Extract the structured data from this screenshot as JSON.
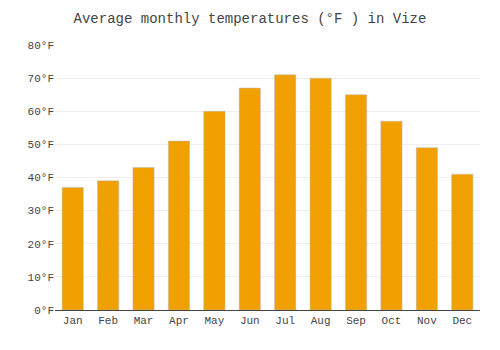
{
  "chart_data": {
    "type": "bar",
    "title": "Average monthly temperatures (°F ) in Vize",
    "categories": [
      "Jan",
      "Feb",
      "Mar",
      "Apr",
      "May",
      "Jun",
      "Jul",
      "Aug",
      "Sep",
      "Oct",
      "Nov",
      "Dec"
    ],
    "values": [
      37,
      39,
      43,
      51,
      60,
      67,
      71,
      70,
      65,
      57,
      49,
      41
    ],
    "color": "#F0A000",
    "ylim": [
      0,
      80
    ],
    "yticks": [
      {
        "value": 0,
        "label": "0°F"
      },
      {
        "value": 10,
        "label": "10°F"
      },
      {
        "value": 20,
        "label": "20°F"
      },
      {
        "value": 30,
        "label": "30°F"
      },
      {
        "value": 40,
        "label": "40°F"
      },
      {
        "value": 50,
        "label": "50°F"
      },
      {
        "value": 60,
        "label": "60°F"
      },
      {
        "value": 70,
        "label": "70°F"
      },
      {
        "value": 80,
        "label": "80°F"
      }
    ],
    "grid": true
  }
}
